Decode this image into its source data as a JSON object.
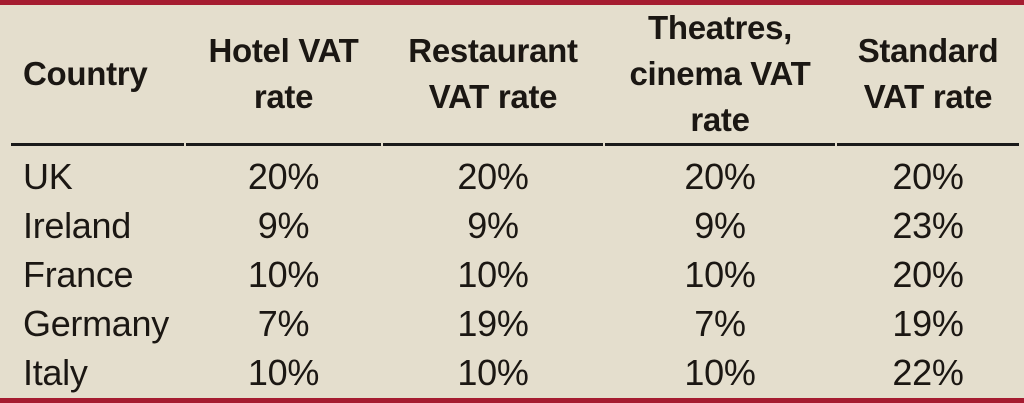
{
  "colors": {
    "background": "#E4DECD",
    "accent_rule_red": "#A51C30",
    "header_rule_black": "#1A1A1A",
    "text": "#1B1713"
  },
  "display": {
    "header_lines": [
      "Country",
      "Hotel VAT\nrate",
      "Restaurant\nVAT rate",
      "Theatres,\ncinema VAT\nrate",
      "Standard\nVAT rate"
    ]
  },
  "chart_data": {
    "type": "table",
    "columns": [
      "Country",
      "Hotel VAT rate",
      "Restaurant VAT rate",
      "Theatres, cinema VAT rate",
      "Standard VAT rate"
    ],
    "rows": [
      [
        "UK",
        "20%",
        "20%",
        "20%",
        "20%"
      ],
      [
        "Ireland",
        "9%",
        "9%",
        "9%",
        "23%"
      ],
      [
        "France",
        "10%",
        "10%",
        "10%",
        "20%"
      ],
      [
        "Germany",
        "7%",
        "19%",
        "7%",
        "19%"
      ],
      [
        "Italy",
        "10%",
        "10%",
        "10%",
        "22%"
      ]
    ]
  }
}
